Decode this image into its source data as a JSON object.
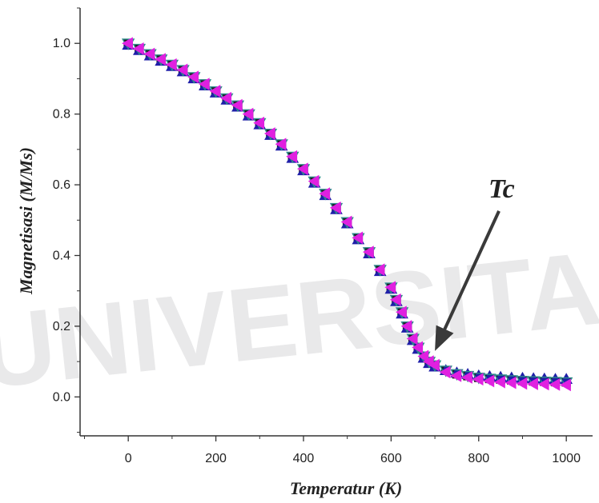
{
  "chart_data": {
    "type": "scatter",
    "title": "",
    "xlabel": "Temperatur (K)",
    "ylabel": "Magnetisasi (M/Ms)",
    "xlim": [
      -110,
      1060
    ],
    "ylim": [
      -0.11,
      1.1
    ],
    "xticks": [
      "0",
      "200",
      "400",
      "600",
      "800",
      "1000"
    ],
    "yticks": [
      "0.0",
      "0.2",
      "0.4",
      "0.6",
      "0.8",
      "1.0"
    ],
    "grid": false,
    "legend": "none",
    "watermark": "UNIVERSITAS",
    "annotation": {
      "text": "Tc",
      "target_x": 700,
      "target_y": 0.13
    },
    "x": [
      0,
      25,
      50,
      75,
      100,
      125,
      150,
      175,
      200,
      225,
      250,
      275,
      300,
      325,
      350,
      375,
      400,
      425,
      450,
      475,
      500,
      525,
      550,
      575,
      600,
      612,
      625,
      637,
      650,
      662,
      675,
      687,
      700,
      725,
      750,
      775,
      800,
      825,
      850,
      875,
      900,
      925,
      950,
      975,
      1000
    ],
    "series": [
      {
        "marker": "square",
        "color": "#1a1a1a",
        "values": [
          1.0,
          0.985,
          0.97,
          0.955,
          0.94,
          0.925,
          0.905,
          0.885,
          0.865,
          0.845,
          0.825,
          0.8,
          0.775,
          0.745,
          0.715,
          0.68,
          0.645,
          0.61,
          0.575,
          0.535,
          0.495,
          0.45,
          0.41,
          0.36,
          0.31,
          0.275,
          0.24,
          0.2,
          0.165,
          0.14,
          0.115,
          0.1,
          0.09,
          0.075,
          0.065,
          0.06,
          0.055,
          0.052,
          0.05,
          0.048,
          0.046,
          0.045,
          0.044,
          0.043,
          0.042
        ]
      },
      {
        "marker": "triangle-up",
        "color": "#1f1fa8",
        "values": [
          0.995,
          0.98,
          0.965,
          0.95,
          0.935,
          0.92,
          0.9,
          0.88,
          0.86,
          0.84,
          0.82,
          0.795,
          0.77,
          0.74,
          0.71,
          0.675,
          0.64,
          0.605,
          0.57,
          0.53,
          0.49,
          0.445,
          0.405,
          0.355,
          0.305,
          0.27,
          0.235,
          0.195,
          0.16,
          0.135,
          0.11,
          0.095,
          0.085,
          0.075,
          0.068,
          0.064,
          0.06,
          0.058,
          0.056,
          0.054,
          0.053,
          0.052,
          0.051,
          0.05,
          0.05
        ]
      },
      {
        "marker": "triangle-down",
        "color": "#2f8c8c",
        "values": [
          1.0,
          0.985,
          0.97,
          0.955,
          0.94,
          0.925,
          0.905,
          0.885,
          0.865,
          0.845,
          0.825,
          0.8,
          0.775,
          0.745,
          0.715,
          0.68,
          0.645,
          0.61,
          0.575,
          0.535,
          0.495,
          0.45,
          0.41,
          0.36,
          0.31,
          0.275,
          0.24,
          0.2,
          0.165,
          0.14,
          0.115,
          0.1,
          0.09,
          0.075,
          0.065,
          0.06,
          0.055,
          0.052,
          0.05,
          0.048,
          0.046,
          0.045,
          0.044,
          0.043,
          0.042
        ]
      },
      {
        "marker": "triangle-left",
        "color": "#e020e0",
        "values": [
          1.0,
          0.985,
          0.97,
          0.955,
          0.94,
          0.925,
          0.905,
          0.885,
          0.865,
          0.845,
          0.825,
          0.8,
          0.775,
          0.745,
          0.715,
          0.68,
          0.645,
          0.61,
          0.575,
          0.535,
          0.495,
          0.45,
          0.41,
          0.36,
          0.31,
          0.275,
          0.24,
          0.2,
          0.165,
          0.14,
          0.115,
          0.1,
          0.09,
          0.07,
          0.06,
          0.055,
          0.05,
          0.045,
          0.042,
          0.04,
          0.038,
          0.037,
          0.036,
          0.035,
          0.034
        ]
      }
    ]
  }
}
